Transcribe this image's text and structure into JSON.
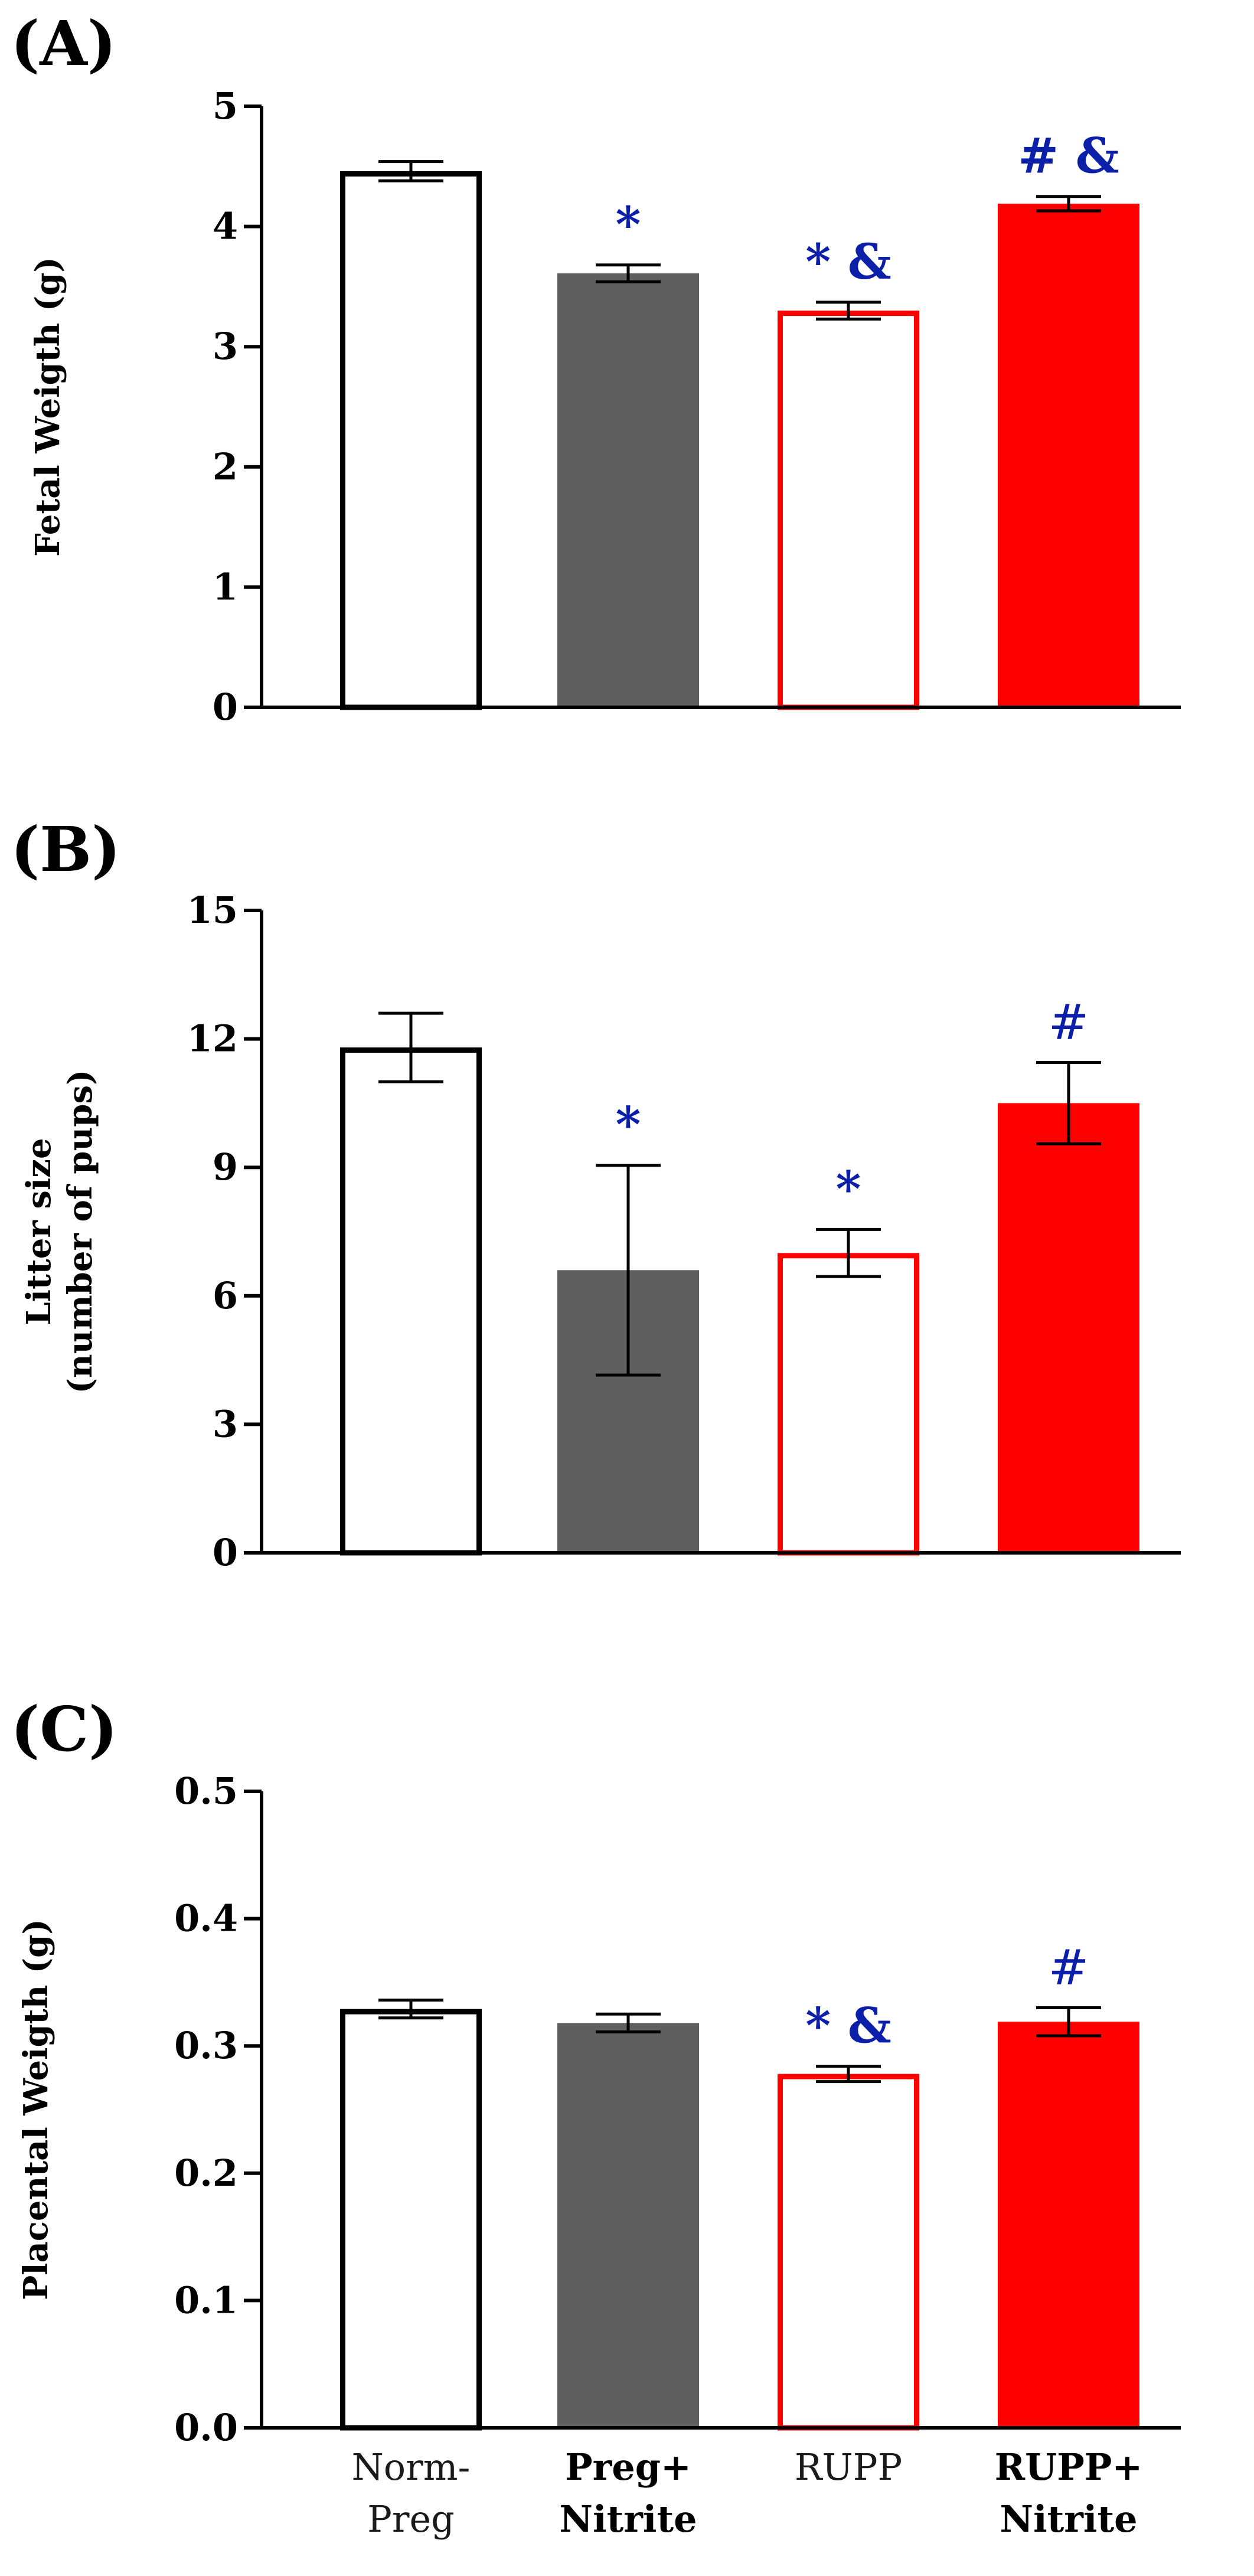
{
  "categories": [
    {
      "lines": [
        "Norm-",
        "Preg"
      ],
      "bold": false
    },
    {
      "lines": [
        "Preg+",
        "Nitrite"
      ],
      "bold": true
    },
    {
      "lines": [
        "RUPP"
      ],
      "bold": false
    },
    {
      "lines": [
        "RUPP+",
        "Nitrite"
      ],
      "bold": true
    }
  ],
  "colors": {
    "normpreg": "#000000",
    "pregnitrite": "#5f5f5f",
    "rupp": "#ff0000",
    "ruppnitrite": "#ff0000",
    "significance": "#0b1fa8",
    "axis": "#000000"
  },
  "chart_data": [
    {
      "type": "bar",
      "panel_label": "(A)",
      "ylabel": "Fetal Weigth (g)",
      "ylim": [
        0,
        5
      ],
      "yticks": [
        0,
        1,
        2,
        3,
        4,
        5
      ],
      "categories": [
        "Norm-Preg",
        "Preg+Nitrite",
        "RUPP",
        "RUPP+Nitrite"
      ],
      "values": [
        4.46,
        3.61,
        3.3,
        4.19
      ],
      "errors": [
        0.08,
        0.07,
        0.07,
        0.06
      ],
      "annotations": [
        "",
        "*",
        "* &",
        "# &"
      ]
    },
    {
      "type": "bar",
      "panel_label": "(B)",
      "ylabel": [
        "Litter size",
        "(number of pups)"
      ],
      "ylim": [
        0,
        15
      ],
      "yticks": [
        0,
        3,
        6,
        9,
        12,
        15
      ],
      "categories": [
        "Norm-Preg",
        "Preg+Nitrite",
        "RUPP",
        "RUPP+Nitrite"
      ],
      "values": [
        11.8,
        6.6,
        7.0,
        10.5
      ],
      "errors": [
        0.8,
        2.45,
        0.55,
        0.95
      ],
      "annotations": [
        "",
        "*",
        "*",
        "#"
      ]
    },
    {
      "type": "bar",
      "panel_label": "(C)",
      "ylabel": "Placental Weigth (g)",
      "ylim": [
        0,
        0.5
      ],
      "yticks": [
        "0.0",
        "0.1",
        "0.2",
        "0.3",
        "0.4",
        "0.5"
      ],
      "categories": [
        "Norm-Preg",
        "Preg+Nitrite",
        "RUPP",
        "RUPP+Nitrite"
      ],
      "values": [
        0.329,
        0.318,
        0.278,
        0.319
      ],
      "errors": [
        0.007,
        0.007,
        0.006,
        0.011
      ],
      "annotations": [
        "",
        "",
        "* &",
        "#"
      ]
    }
  ]
}
